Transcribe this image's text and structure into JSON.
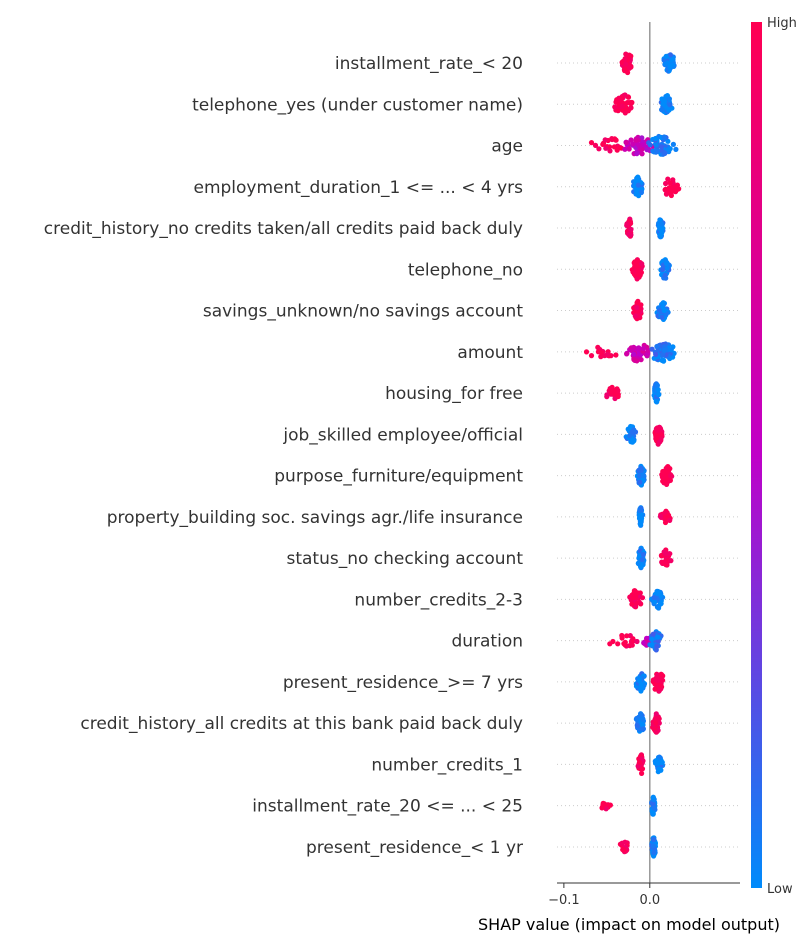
{
  "chart_data": {
    "type": "scatter",
    "subtype": "shap-beeswarm",
    "title": "",
    "xlabel": "SHAP value (impact on model output)",
    "ylabel": "",
    "xlim": [
      -0.108,
      0.105
    ],
    "xticks": [
      -0.1,
      0.0
    ],
    "xtick_labels": [
      "−0.1",
      "0.0"
    ],
    "grid": false,
    "colorbar": {
      "high_label": "High",
      "low_label": "Low",
      "high_color": "#ff0052",
      "mid_color": "#c000c8",
      "low_color": "#008bfb"
    },
    "features": [
      {
        "name": "installment_rate_< 20",
        "clusters": [
          {
            "min": -0.035,
            "max": -0.018,
            "level": 1.0,
            "n": 38
          },
          {
            "min": 0.015,
            "max": 0.03,
            "level": 0.0,
            "n": 45
          }
        ]
      },
      {
        "name": "telephone_yes (under customer name)",
        "clusters": [
          {
            "min": -0.043,
            "max": -0.017,
            "level": 1.0,
            "n": 38
          },
          {
            "min": 0.012,
            "max": 0.026,
            "level": 0.0,
            "n": 55
          }
        ]
      },
      {
        "name": "age",
        "clusters": [
          {
            "min": -0.07,
            "max": -0.015,
            "level": 1.0,
            "n": 22
          },
          {
            "min": -0.03,
            "max": 0.005,
            "level": 0.55,
            "n": 40
          },
          {
            "min": -0.005,
            "max": 0.032,
            "level": 0.05,
            "n": 50
          }
        ]
      },
      {
        "name": "employment_duration_1 <= ... < 4 yrs",
        "clusters": [
          {
            "min": -0.02,
            "max": -0.008,
            "level": 0.0,
            "n": 50
          },
          {
            "min": 0.012,
            "max": 0.036,
            "level": 1.0,
            "n": 28
          }
        ]
      },
      {
        "name": "credit_history_no credits taken/all credits paid back duly",
        "clusters": [
          {
            "min": -0.028,
            "max": -0.019,
            "level": 1.0,
            "n": 28
          },
          {
            "min": 0.009,
            "max": 0.016,
            "level": 0.0,
            "n": 48
          }
        ]
      },
      {
        "name": "telephone_no",
        "clusters": [
          {
            "min": -0.021,
            "max": -0.008,
            "level": 1.0,
            "n": 50
          },
          {
            "min": 0.01,
            "max": 0.025,
            "level": 0.0,
            "n": 34
          }
        ]
      },
      {
        "name": "savings_unknown/no savings account",
        "clusters": [
          {
            "min": -0.019,
            "max": -0.009,
            "level": 1.0,
            "n": 35
          },
          {
            "min": 0.008,
            "max": 0.022,
            "level": 0.0,
            "n": 40
          }
        ]
      },
      {
        "name": "amount",
        "clusters": [
          {
            "min": -0.102,
            "max": -0.025,
            "level": 1.0,
            "n": 16
          },
          {
            "min": -0.03,
            "max": 0.0,
            "level": 0.6,
            "n": 38
          },
          {
            "min": -0.002,
            "max": 0.03,
            "level": 0.05,
            "n": 50
          }
        ]
      },
      {
        "name": "housing_for free",
        "clusters": [
          {
            "min": -0.051,
            "max": -0.034,
            "level": 1.0,
            "n": 22
          },
          {
            "min": 0.004,
            "max": 0.011,
            "level": 0.0,
            "n": 34
          }
        ]
      },
      {
        "name": "job_skilled employee/official",
        "clusters": [
          {
            "min": -0.028,
            "max": -0.015,
            "level": 0.0,
            "n": 28
          },
          {
            "min": 0.005,
            "max": 0.015,
            "level": 1.0,
            "n": 62
          }
        ]
      },
      {
        "name": "purpose_furniture/equipment",
        "clusters": [
          {
            "min": -0.015,
            "max": -0.005,
            "level": 0.0,
            "n": 42
          },
          {
            "min": 0.012,
            "max": 0.028,
            "level": 1.0,
            "n": 32
          }
        ]
      },
      {
        "name": "property_building soc. savings agr./life insurance",
        "clusters": [
          {
            "min": -0.013,
            "max": -0.008,
            "level": 0.0,
            "n": 36
          },
          {
            "min": 0.012,
            "max": 0.025,
            "level": 1.0,
            "n": 18
          }
        ]
      },
      {
        "name": "status_no checking account",
        "clusters": [
          {
            "min": -0.014,
            "max": -0.006,
            "level": 0.0,
            "n": 40
          },
          {
            "min": 0.012,
            "max": 0.025,
            "level": 1.0,
            "n": 26
          }
        ]
      },
      {
        "name": "number_credits_2-3",
        "clusters": [
          {
            "min": -0.025,
            "max": -0.008,
            "level": 1.0,
            "n": 40
          },
          {
            "min": 0.002,
            "max": 0.016,
            "level": 0.0,
            "n": 42
          }
        ]
      },
      {
        "name": "duration",
        "clusters": [
          {
            "min": -0.05,
            "max": -0.005,
            "level": 1.0,
            "n": 18
          },
          {
            "min": -0.008,
            "max": 0.002,
            "level": 0.6,
            "n": 18
          },
          {
            "min": 0.0,
            "max": 0.014,
            "level": 0.05,
            "n": 34
          }
        ]
      },
      {
        "name": "present_residence_>= 7 yrs",
        "clusters": [
          {
            "min": -0.016,
            "max": -0.005,
            "level": 0.0,
            "n": 40
          },
          {
            "min": 0.002,
            "max": 0.018,
            "level": 1.0,
            "n": 40
          }
        ]
      },
      {
        "name": "credit_history_all credits at this bank paid back duly",
        "clusters": [
          {
            "min": -0.016,
            "max": -0.006,
            "level": 0.0,
            "n": 46
          },
          {
            "min": 0.003,
            "max": 0.012,
            "level": 1.0,
            "n": 42
          }
        ]
      },
      {
        "name": "number_credits_1",
        "clusters": [
          {
            "min": -0.014,
            "max": -0.006,
            "level": 1.0,
            "n": 30
          },
          {
            "min": 0.005,
            "max": 0.016,
            "level": 0.0,
            "n": 26
          }
        ]
      },
      {
        "name": "installment_rate_20 <= ... < 25",
        "clusters": [
          {
            "min": -0.06,
            "max": -0.044,
            "level": 1.0,
            "n": 12
          },
          {
            "min": 0.002,
            "max": 0.006,
            "level": 0.0,
            "n": 42
          }
        ]
      },
      {
        "name": "present_residence_< 1 yr",
        "clusters": [
          {
            "min": -0.036,
            "max": -0.022,
            "level": 1.0,
            "n": 16
          },
          {
            "min": 0.002,
            "max": 0.007,
            "level": 0.0,
            "n": 46
          }
        ]
      }
    ]
  }
}
